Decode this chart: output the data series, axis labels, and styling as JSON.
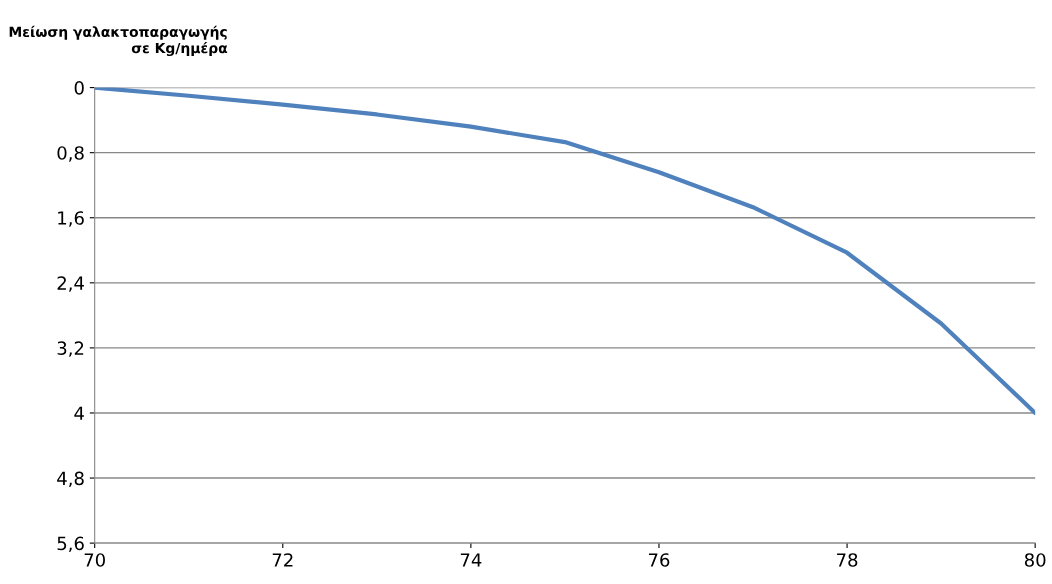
{
  "chart_data": {
    "type": "line",
    "ylabel": "Μείωση γαλακτοπαραγωγής\nσε Kg/ημέρα",
    "x": [
      70,
      71,
      72,
      73,
      74,
      75,
      76,
      77,
      78,
      79,
      80
    ],
    "series": [
      {
        "color": "#4f81bd",
        "values": [
          0,
          0.1,
          0.21,
          0.33,
          0.48,
          0.67,
          1.04,
          1.47,
          2.03,
          2.9,
          4
        ]
      }
    ],
    "xlim": [
      70,
      80
    ],
    "xticks": [
      70,
      72,
      74,
      76,
      78,
      80
    ],
    "ylim": [
      5.6,
      0
    ],
    "yticks": [
      0,
      {
        "value": 0.8,
        "label": "0,8"
      },
      {
        "value": 1.6,
        "label": "1,6"
      },
      {
        "value": 2.4,
        "label": "2,4"
      },
      {
        "value": 3.2,
        "label": "3,2"
      },
      4,
      {
        "value": 4.8,
        "label": "4,8"
      },
      {
        "value": 5.6,
        "label": "5,6"
      }
    ],
    "grid": "y",
    "marker": "none",
    "line_style": "solid"
  }
}
